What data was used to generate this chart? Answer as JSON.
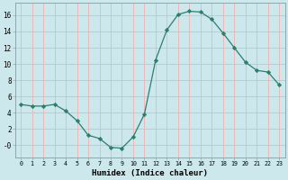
{
  "x": [
    0,
    1,
    2,
    3,
    4,
    5,
    6,
    7,
    8,
    9,
    10,
    11,
    12,
    13,
    14,
    15,
    16,
    17,
    18,
    19,
    20,
    21,
    22,
    23
  ],
  "y": [
    5,
    4.8,
    4.8,
    5,
    4.2,
    3,
    1.2,
    0.8,
    -0.3,
    -0.4,
    1,
    3.8,
    10.5,
    14.2,
    16.1,
    16.5,
    16.4,
    15.5,
    13.8,
    12,
    10.2,
    9.2,
    9,
    7.4
  ],
  "line_color": "#2e7d6e",
  "marker_color": "#2e7d6e",
  "bg_color": "#cce8ec",
  "grid_color": "#f0b0b0",
  "xlabel": "Humidex (Indice chaleur)",
  "ylim": [
    -1.5,
    17.5
  ],
  "xlim": [
    -0.5,
    23.5
  ],
  "yticks": [
    0,
    2,
    4,
    6,
    8,
    10,
    12,
    14,
    16
  ],
  "ytick_labels": [
    "-0",
    "2",
    "4",
    "6",
    "8",
    "10",
    "12",
    "14",
    "16"
  ],
  "xticks": [
    0,
    1,
    2,
    3,
    4,
    5,
    6,
    7,
    8,
    9,
    10,
    11,
    12,
    13,
    14,
    15,
    16,
    17,
    18,
    19,
    20,
    21,
    22,
    23
  ]
}
